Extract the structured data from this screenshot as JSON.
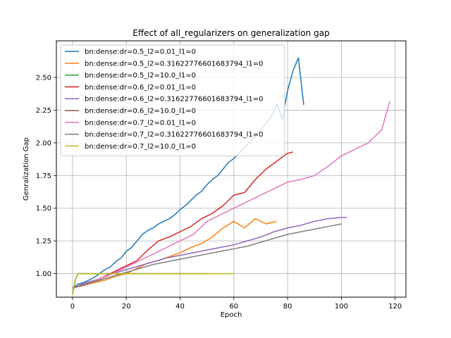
{
  "chart_data": {
    "type": "line",
    "title": "Effect of all_regularizers on generalization gap",
    "xlabel": "Epoch",
    "ylabel": "Genralization Gap",
    "xlim": [
      -6,
      124
    ],
    "ylim": [
      0.82,
      2.78
    ],
    "xticks": [
      0,
      20,
      40,
      60,
      80,
      100,
      120
    ],
    "yticks": [
      1.0,
      1.25,
      1.5,
      1.75,
      2.0,
      2.25,
      2.5
    ],
    "grid": true,
    "legend_position": "top-left",
    "series": [
      {
        "name": "bn:dense:dr=0.5_l2=0.01_l1=0",
        "color": "#1f77b4",
        "x": [
          0,
          2,
          4,
          6,
          8,
          10,
          12,
          14,
          16,
          18,
          20,
          22,
          24,
          26,
          28,
          30,
          32,
          34,
          36,
          38,
          40,
          42,
          44,
          46,
          48,
          50,
          52,
          54,
          56,
          58,
          60,
          62,
          64,
          66,
          68,
          70,
          72,
          74,
          76,
          78,
          80,
          82,
          84,
          86
        ],
        "y": [
          0.89,
          0.92,
          0.93,
          0.95,
          0.97,
          1.0,
          1.03,
          1.05,
          1.09,
          1.12,
          1.17,
          1.2,
          1.25,
          1.3,
          1.33,
          1.35,
          1.38,
          1.4,
          1.42,
          1.45,
          1.49,
          1.52,
          1.56,
          1.6,
          1.63,
          1.68,
          1.72,
          1.75,
          1.8,
          1.85,
          1.88,
          1.92,
          1.97,
          2.0,
          2.05,
          2.1,
          2.15,
          2.2,
          2.3,
          2.18,
          2.4,
          2.55,
          2.65,
          2.29
        ]
      },
      {
        "name": "bn:dense:dr=0.5_l2=0.31622776601683794_l1=0",
        "color": "#ff7f0e",
        "x": [
          0,
          4,
          8,
          12,
          16,
          20,
          24,
          28,
          32,
          36,
          40,
          44,
          48,
          52,
          56,
          60,
          64,
          68,
          72,
          76
        ],
        "y": [
          0.89,
          0.91,
          0.93,
          0.95,
          0.98,
          1.0,
          1.04,
          1.08,
          1.1,
          1.13,
          1.16,
          1.2,
          1.23,
          1.28,
          1.35,
          1.4,
          1.35,
          1.42,
          1.38,
          1.4
        ]
      },
      {
        "name": "bn:dense:dr=0.5_l2=10.0_l1=0",
        "color": "#2ca02c",
        "x": [
          0,
          1,
          2,
          10,
          20,
          30,
          40,
          50
        ],
        "y": [
          0.84,
          0.95,
          1.0,
          1.0,
          1.0,
          1.0,
          1.0,
          1.0
        ]
      },
      {
        "name": "bn:dense:dr=0.6_l2=0.01_l1=0",
        "color": "#d62728",
        "x": [
          0,
          4,
          8,
          12,
          16,
          20,
          24,
          28,
          32,
          36,
          40,
          44,
          48,
          52,
          56,
          60,
          64,
          68,
          72,
          76,
          80,
          82
        ],
        "y": [
          0.89,
          0.91,
          0.94,
          0.98,
          1.02,
          1.06,
          1.1,
          1.18,
          1.25,
          1.28,
          1.32,
          1.36,
          1.42,
          1.46,
          1.52,
          1.6,
          1.62,
          1.72,
          1.8,
          1.86,
          1.92,
          1.93
        ]
      },
      {
        "name": "bn:dense:dr=0.6_l2=0.31622776601683794_l1=0",
        "color": "#9467bd",
        "x": [
          0,
          5,
          10,
          15,
          20,
          25,
          30,
          35,
          40,
          45,
          50,
          55,
          60,
          65,
          70,
          75,
          80,
          85,
          90,
          95,
          100,
          102
        ],
        "y": [
          0.89,
          0.93,
          0.96,
          1.0,
          1.03,
          1.06,
          1.09,
          1.12,
          1.14,
          1.16,
          1.18,
          1.2,
          1.22,
          1.25,
          1.28,
          1.32,
          1.35,
          1.37,
          1.4,
          1.42,
          1.43,
          1.43
        ]
      },
      {
        "name": "bn:dense:dr=0.6_l2=10.0_l1=0",
        "color": "#8c564b",
        "x": [
          0,
          1,
          2,
          10,
          20,
          30,
          40,
          50
        ],
        "y": [
          0.84,
          0.95,
          1.0,
          1.0,
          1.0,
          1.0,
          1.0,
          1.0
        ]
      },
      {
        "name": "bn:dense:dr=0.7_l2=0.01_l1=0",
        "color": "#e377c2",
        "x": [
          0,
          5,
          10,
          15,
          20,
          25,
          30,
          35,
          40,
          45,
          50,
          55,
          60,
          65,
          70,
          75,
          80,
          85,
          90,
          95,
          100,
          105,
          110,
          115,
          118
        ],
        "y": [
          0.89,
          0.92,
          0.96,
          1.0,
          1.05,
          1.1,
          1.15,
          1.2,
          1.25,
          1.3,
          1.4,
          1.45,
          1.5,
          1.55,
          1.6,
          1.65,
          1.7,
          1.72,
          1.75,
          1.82,
          1.9,
          1.95,
          2.0,
          2.1,
          2.32
        ]
      },
      {
        "name": "bn:dense:dr=0.7_l2=0.31622776601683794_l1=0",
        "color": "#7f7f7f",
        "x": [
          0,
          5,
          10,
          15,
          20,
          25,
          30,
          35,
          40,
          45,
          50,
          55,
          60,
          65,
          70,
          75,
          80,
          85,
          90,
          95,
          100
        ],
        "y": [
          0.89,
          0.92,
          0.95,
          0.98,
          1.01,
          1.04,
          1.07,
          1.09,
          1.11,
          1.13,
          1.15,
          1.17,
          1.19,
          1.21,
          1.24,
          1.27,
          1.3,
          1.32,
          1.34,
          1.36,
          1.38
        ]
      },
      {
        "name": "bn:dense:dr=0.7_l2=10.0_l1=0",
        "color": "#bcbd22",
        "x": [
          0,
          1,
          2,
          10,
          20,
          30,
          40,
          50,
          60
        ],
        "y": [
          0.84,
          0.95,
          1.0,
          1.0,
          1.0,
          1.0,
          1.0,
          1.0,
          1.0
        ]
      }
    ]
  }
}
